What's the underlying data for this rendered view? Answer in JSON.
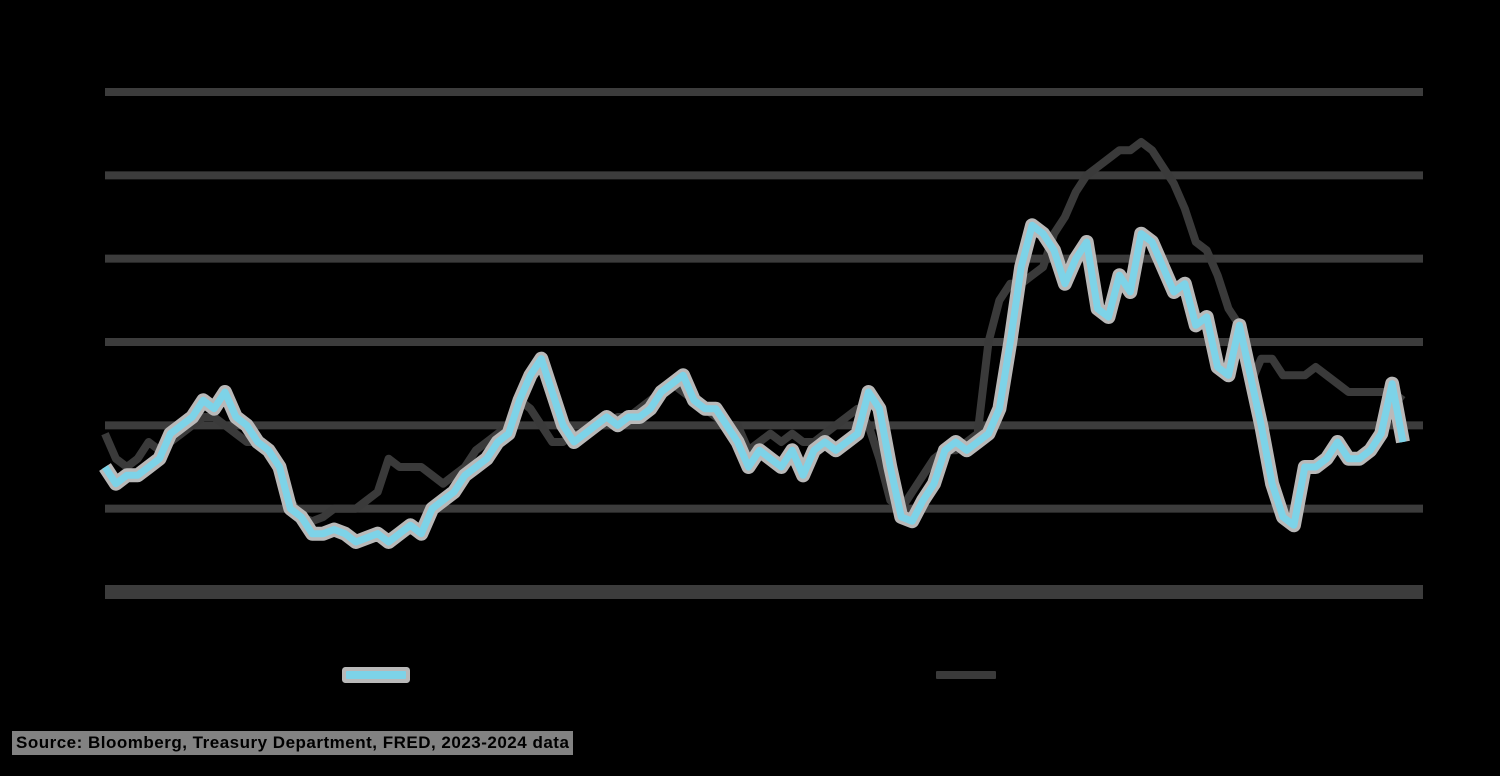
{
  "chart_data": {
    "type": "line",
    "title": "",
    "xlabel": "",
    "ylabel": "",
    "grid": true,
    "legend_position": "bottom",
    "y_gridline_levels": [
      0,
      1,
      2,
      3,
      4,
      5,
      6
    ],
    "ylim": [
      0,
      6
    ],
    "x_points": 120,
    "series": [
      {
        "name": "",
        "color": "#7dd3e8",
        "halo_color": "#b9b9b9",
        "values": [
          1.5,
          1.3,
          1.4,
          1.4,
          1.5,
          1.6,
          1.9,
          2.0,
          2.1,
          2.3,
          2.2,
          2.4,
          2.1,
          2.0,
          1.8,
          1.7,
          1.5,
          1.0,
          0.9,
          0.7,
          0.7,
          0.75,
          0.7,
          0.6,
          0.65,
          0.7,
          0.6,
          0.7,
          0.8,
          0.7,
          1.0,
          1.1,
          1.2,
          1.4,
          1.5,
          1.6,
          1.8,
          1.9,
          2.3,
          2.6,
          2.8,
          2.4,
          2.0,
          1.8,
          1.9,
          2.0,
          2.1,
          2.0,
          2.1,
          2.1,
          2.2,
          2.4,
          2.5,
          2.6,
          2.3,
          2.2,
          2.2,
          2.0,
          1.8,
          1.5,
          1.7,
          1.6,
          1.5,
          1.7,
          1.4,
          1.7,
          1.8,
          1.7,
          1.8,
          1.9,
          2.4,
          2.2,
          1.5,
          0.9,
          0.85,
          1.1,
          1.3,
          1.7,
          1.8,
          1.7,
          1.8,
          1.9,
          2.2,
          3.0,
          3.9,
          4.4,
          4.3,
          4.1,
          3.7,
          4.0,
          4.2,
          3.4,
          3.3,
          3.8,
          3.6,
          4.3,
          4.2,
          3.9,
          3.6,
          3.7,
          3.2,
          3.3,
          2.7,
          2.6,
          3.2,
          2.6,
          2.0,
          1.3,
          0.9,
          0.8,
          1.5,
          1.5,
          1.6,
          1.8,
          1.6,
          1.6,
          1.7,
          1.9,
          2.5,
          1.8
        ]
      },
      {
        "name": "",
        "color": "#3a3a3a",
        "values": [
          1.9,
          1.6,
          1.5,
          1.6,
          1.8,
          1.7,
          1.8,
          1.9,
          2.0,
          2.1,
          2.1,
          2.0,
          1.9,
          1.8,
          1.8,
          1.7,
          1.4,
          1.1,
          0.9,
          0.85,
          0.9,
          1.0,
          1.0,
          1.0,
          1.1,
          1.2,
          1.6,
          1.5,
          1.5,
          1.5,
          1.4,
          1.3,
          1.4,
          1.5,
          1.7,
          1.8,
          1.9,
          2.0,
          2.3,
          2.2,
          2.0,
          1.8,
          1.8,
          1.9,
          1.9,
          2.0,
          2.0,
          2.1,
          2.1,
          2.2,
          2.3,
          2.4,
          2.5,
          2.4,
          2.3,
          2.2,
          2.1,
          2.0,
          2.0,
          1.7,
          1.8,
          1.9,
          1.8,
          1.9,
          1.8,
          1.8,
          1.9,
          2.0,
          2.1,
          2.2,
          2.0,
          1.6,
          1.1,
          1.0,
          1.2,
          1.4,
          1.6,
          1.7,
          1.7,
          1.8,
          1.9,
          3.0,
          3.5,
          3.7,
          3.7,
          3.8,
          3.9,
          4.3,
          4.5,
          4.8,
          5.0,
          5.1,
          5.2,
          5.3,
          5.3,
          5.4,
          5.3,
          5.1,
          4.9,
          4.6,
          4.2,
          4.1,
          3.8,
          3.4,
          3.2,
          2.5,
          2.8,
          2.8,
          2.6,
          2.6,
          2.6,
          2.7,
          2.6,
          2.5,
          2.4,
          2.4,
          2.4,
          2.4,
          2.4,
          2.3
        ]
      }
    ]
  },
  "legend": {
    "items": [
      {
        "label": "",
        "swatch": "light-blue-line"
      },
      {
        "label": "",
        "swatch": "dark-gray-line"
      }
    ]
  },
  "source": {
    "text": "Source: Bloomberg, Treasury Department, FRED, 2023-2024 data"
  },
  "colors": {
    "background": "#000000",
    "gridline": "#3c3c3c",
    "series_light": "#7dd3e8",
    "series_dark": "#3a3a3a",
    "halo": "#b9b9b9",
    "source_block": "#828282"
  }
}
